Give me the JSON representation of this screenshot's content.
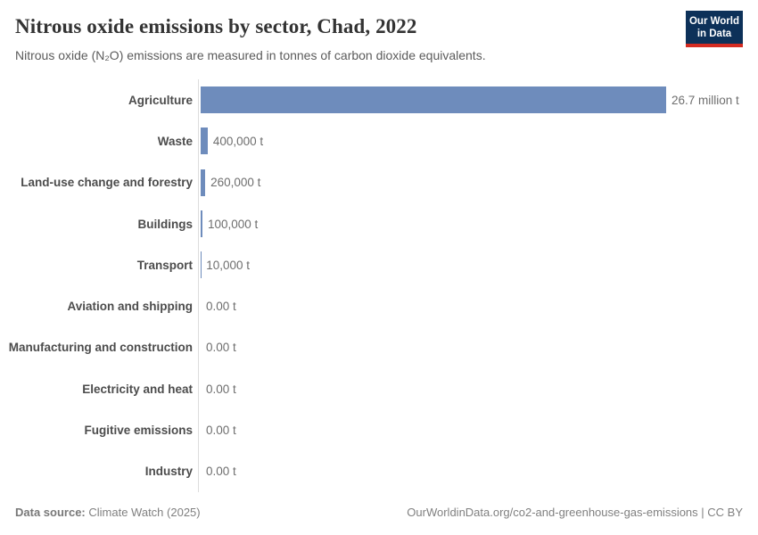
{
  "header": {
    "title": "Nitrous oxide emissions by sector, Chad, 2022",
    "subtitle": "Nitrous oxide (N₂O) emissions are measured in tonnes of carbon dioxide equivalents.",
    "logo": {
      "line1": "Our World",
      "line2": "in Data",
      "bg_color": "#0d3159",
      "accent_color": "#d42b21"
    }
  },
  "chart_data": {
    "type": "bar",
    "orientation": "horizontal",
    "title": "Nitrous oxide emissions by sector, Chad, 2022",
    "subtitle": "Nitrous oxide (N₂O) emissions are measured in tonnes of carbon dioxide equivalents.",
    "unit": "tonnes of CO₂ equivalents",
    "categories": [
      "Agriculture",
      "Waste",
      "Land-use change and forestry",
      "Buildings",
      "Transport",
      "Aviation and shipping",
      "Manufacturing and construction",
      "Electricity and heat",
      "Fugitive emissions",
      "Industry"
    ],
    "values": [
      26700000,
      400000,
      260000,
      100000,
      10000,
      0,
      0,
      0,
      0,
      0
    ],
    "value_labels": [
      "26.7 million t",
      "400,000 t",
      "260,000 t",
      "100,000 t",
      "10,000 t",
      "0.00 t",
      "0.00 t",
      "0.00 t",
      "0.00 t",
      "0.00 t"
    ],
    "xlim": [
      0,
      26700000
    ],
    "bar_color": "#6e8cbc",
    "axis_line_color": "#dcdcdc",
    "grid": "off",
    "legend": "none"
  },
  "footer": {
    "data_source_label": "Data source:",
    "data_source_value": "Climate Watch (2025)",
    "url_text": "OurWorldinData.org/co2-and-greenhouse-gas-emissions | CC BY"
  }
}
